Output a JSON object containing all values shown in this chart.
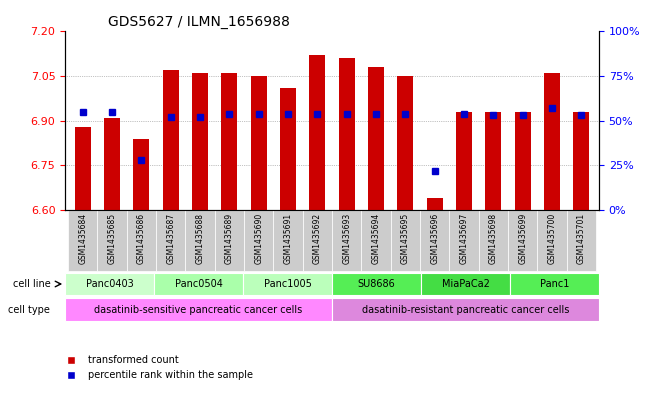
{
  "title": "GDS5627 / ILMN_1656988",
  "samples": [
    "GSM1435684",
    "GSM1435685",
    "GSM1435686",
    "GSM1435687",
    "GSM1435688",
    "GSM1435689",
    "GSM1435690",
    "GSM1435691",
    "GSM1435692",
    "GSM1435693",
    "GSM1435694",
    "GSM1435695",
    "GSM1435696",
    "GSM1435697",
    "GSM1435698",
    "GSM1435699",
    "GSM1435700",
    "GSM1435701"
  ],
  "bar_values": [
    6.88,
    6.91,
    6.84,
    7.07,
    7.06,
    7.06,
    7.05,
    7.01,
    7.12,
    7.11,
    7.08,
    7.05,
    6.64,
    6.93,
    6.93,
    6.93,
    7.06,
    6.93
  ],
  "percentile_values": [
    55,
    55,
    28,
    52,
    52,
    54,
    54,
    54,
    54,
    54,
    54,
    54,
    22,
    54,
    53,
    53,
    57,
    53
  ],
  "ylim_left": [
    6.6,
    7.2
  ],
  "ylim_right": [
    0,
    100
  ],
  "yticks_left": [
    6.6,
    6.75,
    6.9,
    7.05,
    7.2
  ],
  "yticks_right": [
    0,
    25,
    50,
    75,
    100
  ],
  "ytick_labels_right": [
    "0%",
    "25%",
    "50%",
    "75%",
    "100%"
  ],
  "bar_color": "#cc0000",
  "dot_color": "#0000cc",
  "baseline": 6.6,
  "grid_color": "#888888",
  "cell_lines": [
    {
      "name": "Panc0403",
      "start": 0,
      "end": 3,
      "color": "#ccffcc"
    },
    {
      "name": "Panc0504",
      "start": 3,
      "end": 6,
      "color": "#aaffaa"
    },
    {
      "name": "Panc1005",
      "start": 6,
      "end": 9,
      "color": "#bbffbb"
    },
    {
      "name": "SU8686",
      "start": 9,
      "end": 12,
      "color": "#55ee55"
    },
    {
      "name": "MiaPaCa2",
      "start": 12,
      "end": 15,
      "color": "#44dd44"
    },
    {
      "name": "Panc1",
      "start": 15,
      "end": 18,
      "color": "#55ee55"
    }
  ],
  "cell_type_sensitive": {
    "name": "dasatinib-sensitive pancreatic cancer cells",
    "start": 0,
    "end": 9,
    "color": "#ff88ff"
  },
  "cell_type_resistant": {
    "name": "dasatinib-resistant pancreatic cancer cells",
    "start": 9,
    "end": 18,
    "color": "#dd88dd"
  },
  "tick_label_bg": "#cccccc"
}
